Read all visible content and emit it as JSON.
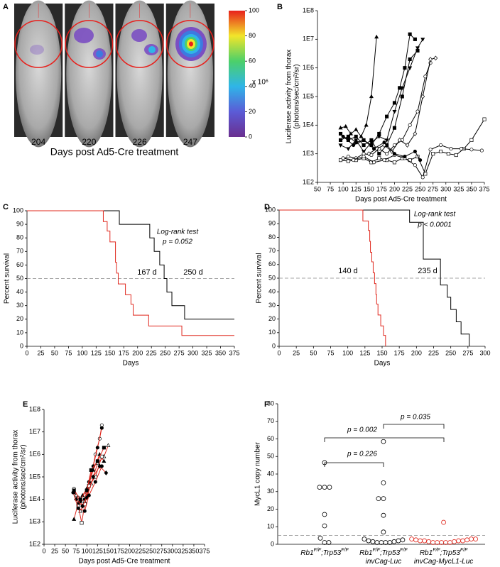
{
  "chart_data": [
    {
      "panel": "A",
      "type": "image",
      "categories": [
        "204",
        "220",
        "226",
        "247"
      ],
      "xlabel": "Days post Ad5-Cre treatment",
      "colorbar_lim": [
        0,
        100
      ],
      "colorbar_ticks": [
        0,
        20,
        40,
        60,
        80,
        100
      ],
      "colorbar_label": "x 10⁶"
    },
    {
      "panel": "B",
      "type": "line",
      "xlabel": "Days post Ad5-Cre treatment",
      "ylabel": [
        "Luciferase activity from thorax",
        "(photons/sec/cm²/sr)"
      ],
      "xlim": [
        50,
        375
      ],
      "xticks": [
        50,
        75,
        100,
        125,
        150,
        175,
        200,
        225,
        250,
        275,
        300,
        325,
        350,
        375
      ],
      "ylim": [
        100,
        100000000
      ],
      "log_y": true,
      "yticks": [
        {
          "value": 100,
          "label": "1E2"
        },
        {
          "value": 1000,
          "label": "1E3"
        },
        {
          "value": 10000,
          "label": "1E4"
        },
        {
          "value": 100000,
          "label": "1E5"
        },
        {
          "value": 1000000,
          "label": "1E6"
        },
        {
          "value": 10000000,
          "label": "1E7"
        },
        {
          "value": 100000000,
          "label": "1E8"
        }
      ],
      "series": [
        {
          "color": "#000000",
          "marker": "triangle",
          "marker_fill": "#000000",
          "x": [
            95,
            105,
            115,
            125,
            135,
            145,
            155,
            165
          ],
          "values": [
            8000,
            9000,
            5000,
            7000,
            4000,
            10000,
            100000,
            12000000
          ]
        },
        {
          "color": "#000000",
          "marker": "square",
          "marker_fill": "#000000",
          "x": [
            95,
            110,
            125,
            140,
            155,
            170,
            185,
            200,
            210,
            220,
            230,
            240
          ],
          "values": [
            3000,
            4000,
            2500,
            3000,
            2000,
            5000,
            20000,
            60000,
            200000,
            1000000,
            15000000,
            10000000
          ]
        },
        {
          "color": "#000000",
          "marker": "square",
          "marker_fill": "#000000",
          "x": [
            95,
            110,
            125,
            140,
            155,
            170,
            185,
            200,
            215,
            230,
            245
          ],
          "values": [
            5000,
            3000,
            4000,
            2000,
            3000,
            1000,
            2000,
            8000,
            100000,
            2000000,
            4000000
          ]
        },
        {
          "color": "#000000",
          "marker": "triangle-down",
          "marker_fill": "#000000",
          "x": [
            95,
            110,
            125,
            140,
            155,
            170,
            185,
            200,
            215,
            230,
            245,
            255
          ],
          "values": [
            2000,
            1500,
            3000,
            1200,
            2500,
            4000,
            3000,
            30000,
            200000,
            1000000,
            5000000,
            10000000
          ]
        },
        {
          "color": "#000000",
          "marker": "circle",
          "marker_fill": "#ffffff",
          "x": [
            95,
            110,
            125,
            140,
            155,
            170,
            185,
            200,
            215,
            230,
            245,
            260,
            270
          ],
          "values": [
            600,
            800,
            700,
            1000,
            900,
            1500,
            1000,
            2000,
            3000,
            10000,
            30000,
            500000,
            1500000
          ]
        },
        {
          "color": "#000000",
          "marker": "diamond",
          "marker_fill": "#ffffff",
          "x": [
            150,
            165,
            180,
            195,
            210,
            225,
            240,
            255,
            270,
            280
          ],
          "values": [
            1000,
            1500,
            2000,
            1200,
            3000,
            2000,
            5000,
            100000,
            2000000,
            2200000
          ]
        },
        {
          "color": "#000000",
          "marker": "square",
          "marker_fill": "#ffffff",
          "x": [
            95,
            110,
            125,
            140,
            155,
            170,
            185,
            200,
            215,
            230,
            245,
            260,
            275,
            290,
            305,
            320,
            335,
            350,
            375
          ],
          "values": [
            600,
            550,
            600,
            700,
            500,
            700,
            600,
            500,
            700,
            600,
            800,
            200,
            1000,
            1200,
            1000,
            900,
            1500,
            3000,
            16000
          ]
        },
        {
          "color": "#000000",
          "marker": "circle",
          "marker_fill": "#ffffff",
          "x": [
            100,
            120,
            140,
            160,
            180,
            200,
            220,
            240,
            255,
            270,
            290,
            310,
            330,
            350,
            370
          ],
          "values": [
            700,
            600,
            800,
            500,
            600,
            900,
            700,
            400,
            150,
            1400,
            2000,
            1500,
            1500,
            1400,
            1300
          ]
        },
        {
          "color": "#000000",
          "marker": "circle",
          "marker_fill": "#000000",
          "x": [
            100,
            120,
            140,
            160,
            180,
            200,
            220,
            240,
            250
          ],
          "values": [
            4000,
            2000,
            3000,
            1500,
            2500,
            1000,
            800,
            1200,
            600
          ]
        }
      ]
    },
    {
      "panel": "C",
      "type": "step",
      "xlabel": "Days",
      "ylabel": "Percent survival",
      "xlim": [
        0,
        375
      ],
      "xticks": [
        0,
        25,
        50,
        75,
        100,
        125,
        150,
        175,
        200,
        225,
        250,
        275,
        300,
        325,
        350,
        375
      ],
      "ylim": [
        0,
        100
      ],
      "yticks": [
        0,
        10,
        20,
        30,
        40,
        50,
        60,
        70,
        80,
        90,
        100
      ],
      "refline": 50,
      "annotations": [
        "Log-rank test",
        "p = 0.052",
        "167 d",
        "250 d"
      ],
      "series": [
        {
          "color": "#000000",
          "x": [
            0,
            167,
            222,
            230,
            240,
            248,
            253,
            262,
            285,
            375
          ],
          "values": [
            100,
            90,
            80,
            70,
            60,
            50,
            40,
            30,
            20,
            20
          ]
        },
        {
          "color": "#e0281e",
          "x": [
            0,
            138,
            145,
            150,
            160,
            162,
            165,
            178,
            188,
            192,
            220,
            280,
            375
          ],
          "values": [
            100,
            92,
            85,
            77,
            62,
            54,
            46,
            38,
            31,
            23,
            15,
            8,
            8
          ]
        }
      ]
    },
    {
      "panel": "D",
      "type": "step",
      "xlabel": "Days",
      "ylabel": "Percent survival",
      "xlim": [
        0,
        300
      ],
      "xticks": [
        0,
        25,
        50,
        75,
        100,
        125,
        150,
        175,
        200,
        225,
        250,
        275,
        300
      ],
      "ylim": [
        0,
        100
      ],
      "yticks": [
        0,
        10,
        20,
        30,
        40,
        50,
        60,
        70,
        80,
        90,
        100
      ],
      "refline": 50,
      "annotations": [
        "Log-rank test",
        "p < 0.0001",
        "140 d",
        "235 d"
      ],
      "series": [
        {
          "color": "#000000",
          "x": [
            0,
            190,
            210,
            235,
            245,
            250,
            258,
            265,
            277
          ],
          "values": [
            100,
            91,
            64,
            45,
            36,
            27,
            18,
            9,
            0
          ]
        },
        {
          "color": "#e0281e",
          "x": [
            0,
            122,
            130,
            132,
            133,
            135,
            137,
            139,
            141,
            142,
            144,
            148,
            152,
            155
          ],
          "values": [
            100,
            92,
            85,
            77,
            69,
            62,
            54,
            46,
            38,
            31,
            23,
            15,
            8,
            0
          ]
        }
      ]
    },
    {
      "panel": "E",
      "type": "line",
      "xlabel": "Days post Ad5-Cre treatment",
      "ylabel": [
        "Luciferase activity from thorax",
        "(photons/sec/cm²/sr)"
      ],
      "xlim": [
        0,
        375
      ],
      "xticks": [
        0,
        25,
        50,
        75,
        100,
        125,
        150,
        175,
        200,
        225,
        250,
        275,
        300,
        325,
        350,
        375
      ],
      "ylim": [
        100,
        100000000
      ],
      "log_y": true,
      "yticks": [
        {
          "value": 100,
          "label": "1E2"
        },
        {
          "value": 1000,
          "label": "1E3"
        },
        {
          "value": 10000,
          "label": "1E4"
        },
        {
          "value": 100000,
          "label": "1E5"
        },
        {
          "value": 1000000,
          "label": "1E6"
        },
        {
          "value": 10000000,
          "label": "1E7"
        },
        {
          "value": 100000000,
          "label": "1E8"
        }
      ],
      "series": [
        {
          "color": "#e0281e",
          "marker": "circle",
          "marker_fill": "#ffffff",
          "x": [
            70,
            80,
            90,
            100,
            110,
            120,
            130,
            135
          ],
          "values": [
            30000,
            12000,
            5000,
            20000,
            100000,
            1000000,
            5000000,
            20000000
          ]
        },
        {
          "color": "#e0281e",
          "marker": "circle",
          "marker_fill": "#000000",
          "x": [
            70,
            85,
            95,
            105,
            115,
            125,
            135
          ],
          "values": [
            20000,
            8000,
            10000,
            60000,
            300000,
            2000000,
            15000000
          ]
        },
        {
          "color": "#e0281e",
          "marker": "triangle",
          "marker_fill": "#ffffff",
          "x": [
            75,
            85,
            95,
            110,
            125,
            140,
            150
          ],
          "values": [
            15000,
            3000,
            8000,
            50000,
            400000,
            800000,
            2500000
          ]
        },
        {
          "color": "#e0281e",
          "marker": "triangle",
          "marker_fill": "#000000",
          "x": [
            70,
            80,
            90,
            100,
            115,
            130,
            140
          ],
          "values": [
            1300,
            7000,
            15000,
            30000,
            200000,
            1000000,
            500000
          ]
        },
        {
          "color": "#e0281e",
          "marker": "square",
          "marker_fill": "#ffffff",
          "x": [
            80,
            88,
            95,
            105,
            120,
            135
          ],
          "values": [
            5000,
            900,
            6000,
            40000,
            100000,
            800000
          ]
        },
        {
          "color": "#e0281e",
          "marker": "square",
          "marker_fill": "#000000",
          "x": [
            70,
            85,
            100,
            110,
            125,
            140
          ],
          "values": [
            25000,
            10000,
            25000,
            200000,
            500000,
            2000000
          ]
        },
        {
          "color": "#e0281e",
          "marker": "diamond",
          "marker_fill": "#000000",
          "x": [
            75,
            90,
            100,
            115,
            130,
            145
          ],
          "values": [
            10000,
            5000,
            12000,
            100000,
            300000,
            150000
          ]
        },
        {
          "color": "#e0281e",
          "marker": "circle",
          "marker_fill": "#000000",
          "x": [
            68,
            80,
            95,
            105,
            120,
            135
          ],
          "values": [
            20000,
            4000,
            3000,
            15000,
            60000,
            300000
          ]
        }
      ]
    },
    {
      "panel": "F",
      "type": "strip",
      "ylabel": "MycL1 copy number",
      "ylim": [
        0,
        80
      ],
      "yticks": [
        0,
        10,
        20,
        30,
        40,
        50,
        60,
        70,
        80
      ],
      "refline": 5,
      "annotations": [
        "p = 0.002",
        "p = 0.226",
        "p = 0.035"
      ],
      "groups": [
        {
          "label": [
            "Rb1F/F;Trp53F/F"
          ],
          "color": "#000000",
          "values": [
            46.5,
            32.5,
            32.5,
            32.5,
            17,
            10.5,
            3.5,
            1,
            1
          ]
        },
        {
          "label": [
            "Rb1F/F;Trp53F/F",
            "invCag-Luc"
          ],
          "color": "#000000",
          "values": [
            58.5,
            35,
            26,
            26,
            16.5,
            7,
            3,
            2,
            1.5,
            1,
            1,
            1,
            1,
            1.5,
            2,
            2.5
          ]
        },
        {
          "label": [
            "Rb1F/F;Trp53F/F",
            "invCag-MycL1-Luc"
          ],
          "color": "#e0281e",
          "values": [
            12.5,
            3,
            2.5,
            2,
            2,
            1.5,
            1,
            1,
            1,
            1,
            1,
            1.5,
            2,
            2,
            2.5,
            3,
            3
          ]
        }
      ]
    }
  ]
}
